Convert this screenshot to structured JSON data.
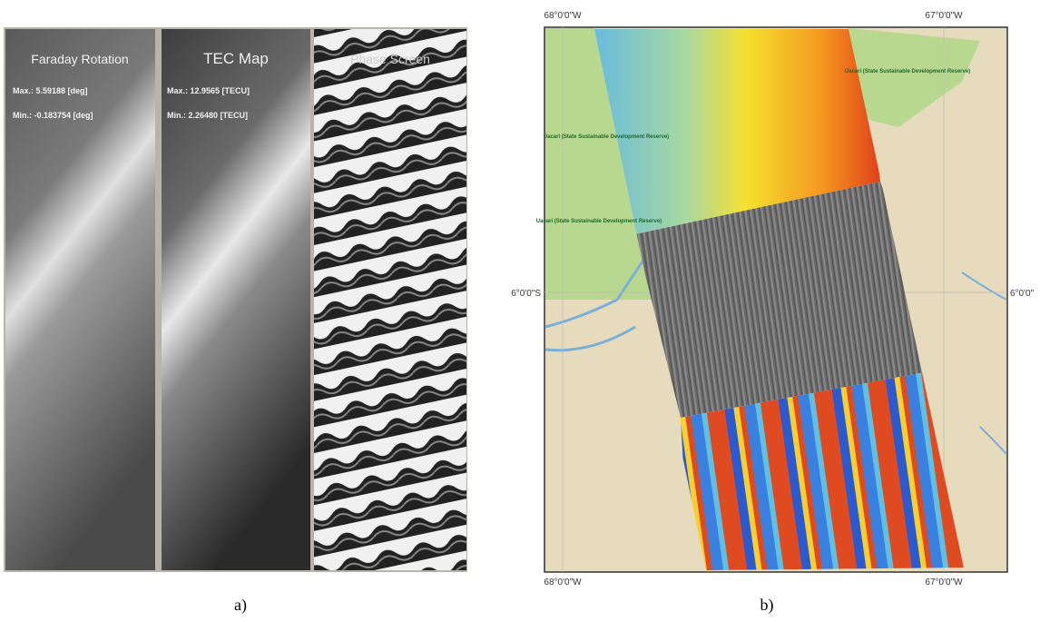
{
  "panel_a": {
    "caption": "a)",
    "strips": [
      {
        "title": "Faraday Rotation",
        "max": "Max.: 5.59188 [deg]",
        "min": "Min.: -0.183754 [deg]"
      },
      {
        "title": "TEC Map",
        "max": "Max.: 12.9565 [TECU]",
        "min": "Min.: 2.26480 [TECU]"
      },
      {
        "title": "Phase Screen"
      }
    ]
  },
  "panel_b": {
    "caption": "b)",
    "top_labels": [
      "68°0'0\"W",
      "67°0'0\"W"
    ],
    "bottom_labels": [
      "68°0'0\"W",
      "67°0'0\"W"
    ],
    "left_label": "6°0'0\"S",
    "right_label": "6°0'0\"",
    "reserve_labels": [
      "Uacari (State Sustainable Development Reserve)",
      "Uacari (State Sustainable Development Reserve)",
      "Uacari (State Sustainable Development Reserve)"
    ]
  }
}
